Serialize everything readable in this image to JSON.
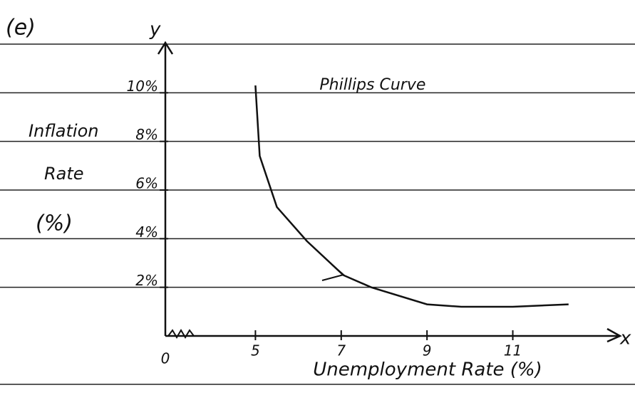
{
  "chart_data": {
    "type": "line",
    "part_label": "(e)",
    "y_axis_letter": "y",
    "x_axis_letter": "x",
    "y_label": [
      "Inflation",
      "Rate",
      "(%)"
    ],
    "x_label": "Unemployment Rate (%)",
    "origin_label": "0",
    "x": [
      5,
      5.1,
      5.5,
      6.2,
      7.05,
      7.7,
      9.0,
      9.8,
      11.0,
      12.3
    ],
    "series": [
      {
        "name": "Phillips Curve",
        "color": "#111111",
        "values": [
          10.3,
          7.4,
          5.3,
          3.9,
          2.5,
          2.0,
          1.3,
          1.2,
          1.2,
          1.3
        ]
      }
    ],
    "xlim": [
      2.9,
      13.5
    ],
    "ylim": [
      0,
      12
    ],
    "xticks": [
      5,
      7,
      9,
      11
    ],
    "yticks": [
      {
        "value": 2,
        "label": "2%"
      },
      {
        "value": 4,
        "label": "4%"
      },
      {
        "value": 6,
        "label": "6%"
      },
      {
        "value": 8,
        "label": "8%"
      },
      {
        "value": 10,
        "label": "10%"
      }
    ],
    "grid": true
  }
}
